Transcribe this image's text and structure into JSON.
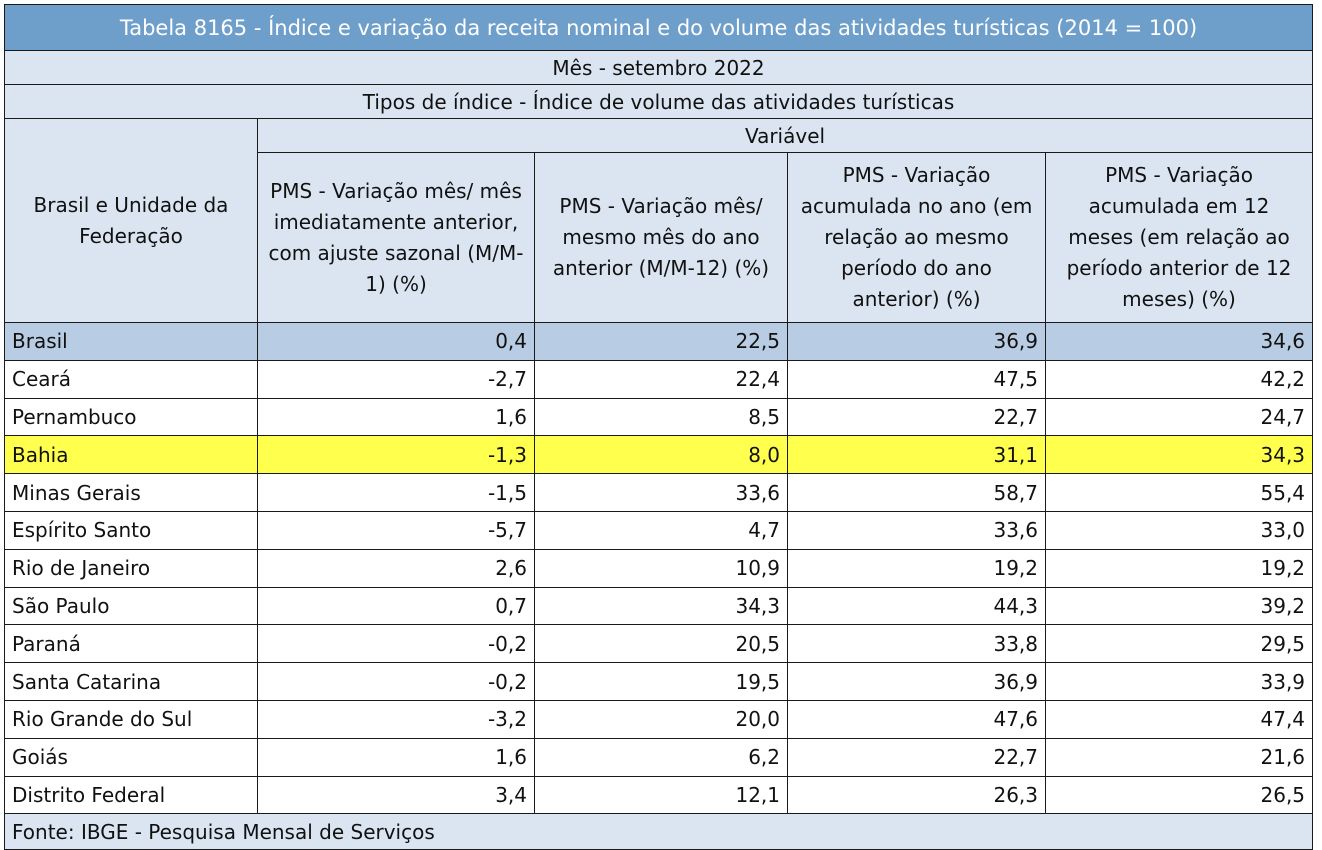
{
  "title": "Tabela 8165 - Índice e variação da receita nominal e do volume das atividades turísticas (2014 = 100)",
  "month_label": "Mês - setembro 2022",
  "index_type_label": "Tipos de índice - Índice de volume das atividades turísticas",
  "region_header": "Brasil e Unidade da Federação",
  "variable_group_label": "Variável",
  "columns": [
    "PMS - Variação mês/ mês imediatamente anterior, com ajuste sazonal (M/M-1) (%)",
    "PMS - Variação mês/ mesmo mês do ano anterior (M/M-12) (%)",
    "PMS - Variação acumulada no ano (em relação ao mesmo período do ano anterior) (%)",
    "PMS - Variação acumulada em 12 meses (em relação ao período anterior de 12 meses) (%)"
  ],
  "rows": [
    {
      "region": "Brasil",
      "values": [
        "0,4",
        "22,5",
        "36,9",
        "34,6"
      ]
    },
    {
      "region": "Ceará",
      "values": [
        "-2,7",
        "22,4",
        "47,5",
        "42,2"
      ]
    },
    {
      "region": "Pernambuco",
      "values": [
        "1,6",
        "8,5",
        "22,7",
        "24,7"
      ]
    },
    {
      "region": "Bahia",
      "values": [
        "-1,3",
        "8,0",
        "31,1",
        "34,3"
      ]
    },
    {
      "region": "Minas Gerais",
      "values": [
        "-1,5",
        "33,6",
        "58,7",
        "55,4"
      ]
    },
    {
      "region": "Espírito Santo",
      "values": [
        "-5,7",
        "4,7",
        "33,6",
        "33,0"
      ]
    },
    {
      "region": "Rio de Janeiro",
      "values": [
        "2,6",
        "10,9",
        "19,2",
        "19,2"
      ]
    },
    {
      "region": "São Paulo",
      "values": [
        "0,7",
        "34,3",
        "44,3",
        "39,2"
      ]
    },
    {
      "region": "Paraná",
      "values": [
        "-0,2",
        "20,5",
        "33,8",
        "29,5"
      ]
    },
    {
      "region": "Santa Catarina",
      "values": [
        "-0,2",
        "19,5",
        "36,9",
        "33,9"
      ]
    },
    {
      "region": "Rio Grande do Sul",
      "values": [
        "-3,2",
        "20,0",
        "47,6",
        "47,4"
      ]
    },
    {
      "region": "Goiás",
      "values": [
        "1,6",
        "6,2",
        "22,7",
        "21,6"
      ]
    },
    {
      "region": "Distrito Federal",
      "values": [
        "3,4",
        "12,1",
        "26,3",
        "26,5"
      ]
    }
  ],
  "source": "Fonte: IBGE - Pesquisa Mensal de Serviços",
  "colors": {
    "title_bg": "#6e9fca",
    "header_bg": "#dbe5f1",
    "brasil_highlight": "#b8cce4",
    "bahia_highlight": "#ffff4d"
  }
}
